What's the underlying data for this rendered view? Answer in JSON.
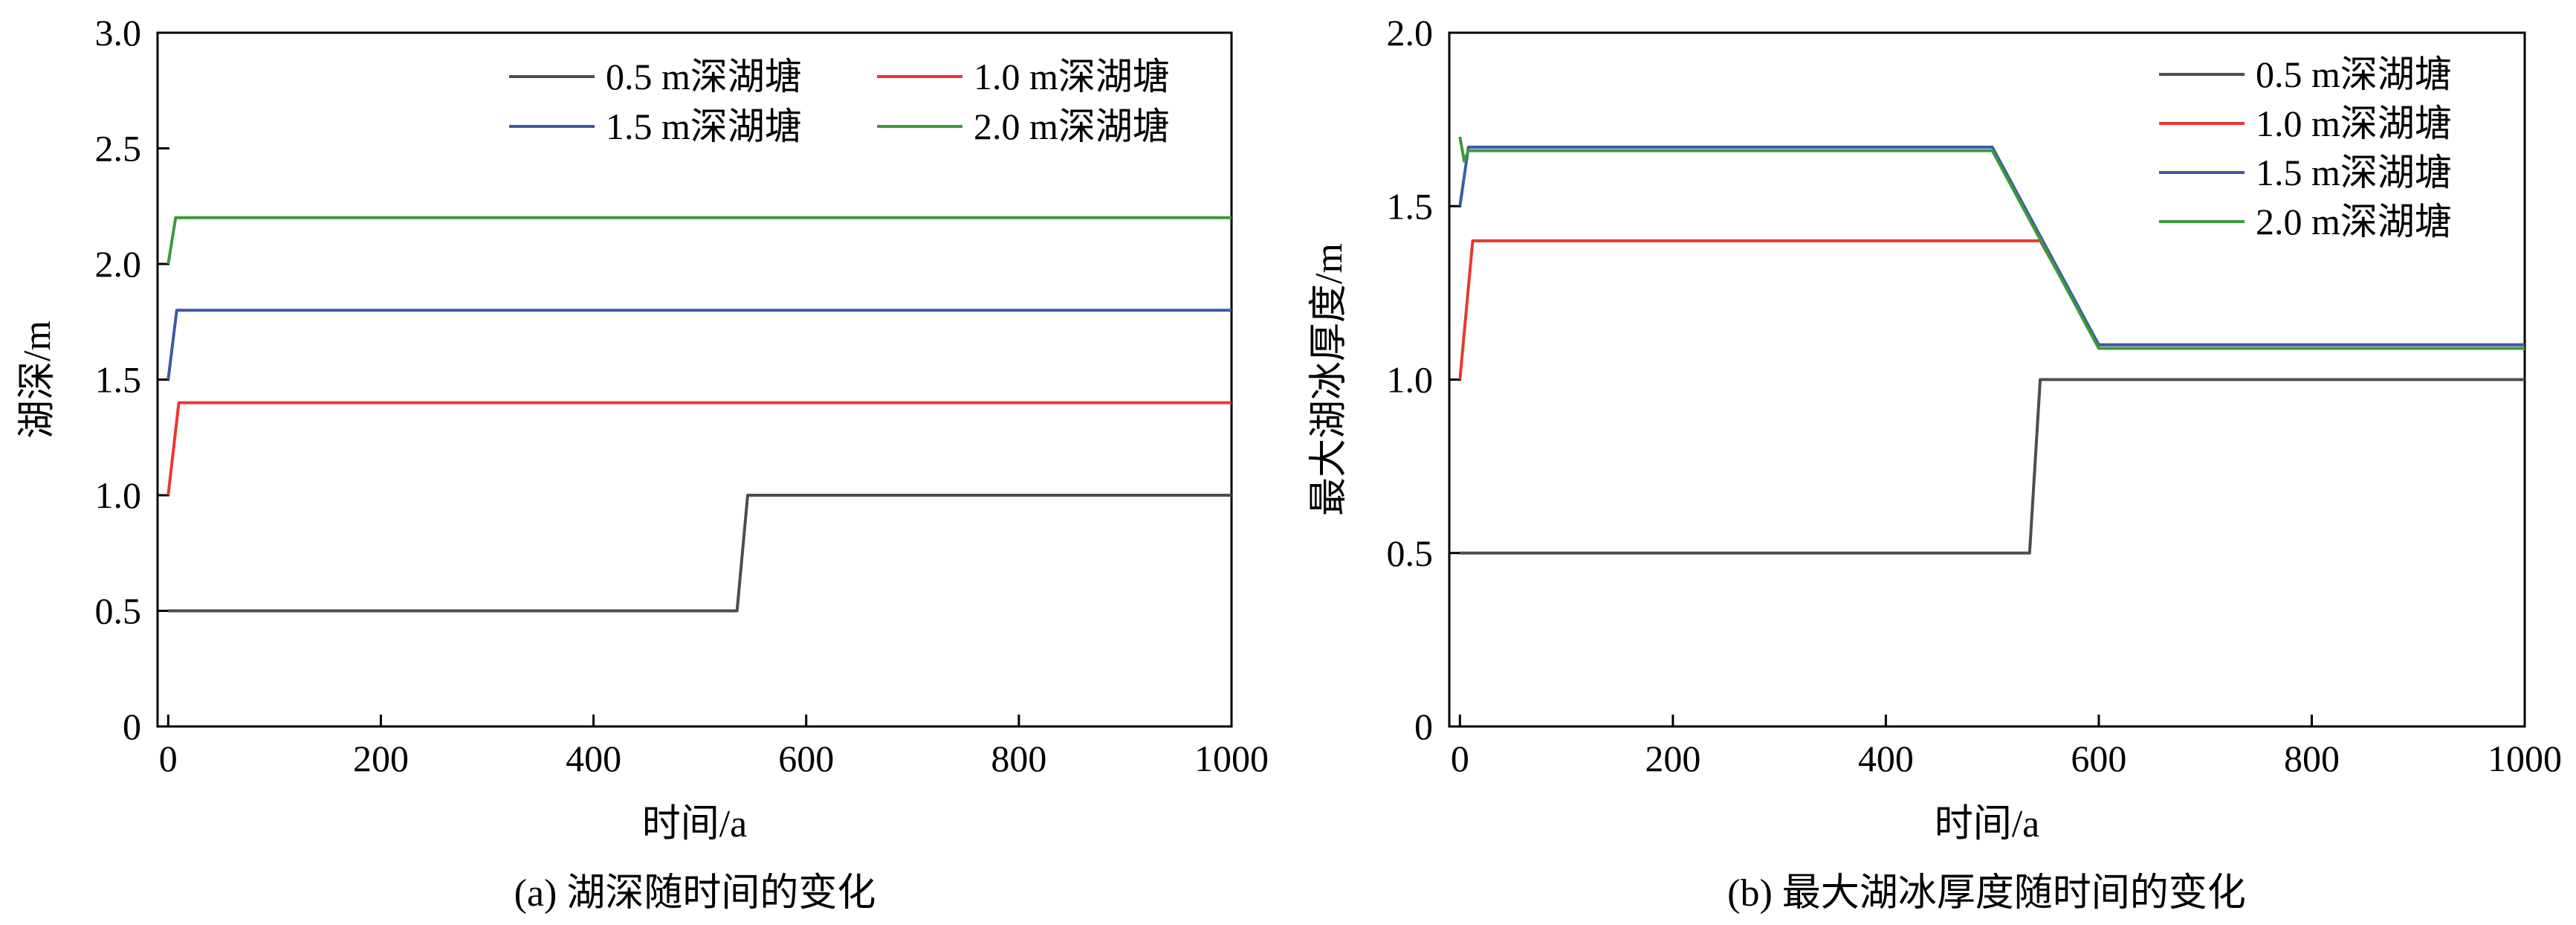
{
  "chart_data": [
    {
      "type": "line",
      "caption": "(a) 湖深随时间的变化",
      "xlabel": "时间/a",
      "ylabel": "湖深/m",
      "xlim": [
        -10,
        1000
      ],
      "ylim": [
        0,
        3.0
      ],
      "xticks": [
        0,
        200,
        400,
        600,
        800,
        1000
      ],
      "xtick_labels": [
        "0",
        "200",
        "400",
        "600",
        "800",
        "1000"
      ],
      "yticks": [
        0,
        0.5,
        1.0,
        1.5,
        2.0,
        2.5,
        3.0
      ],
      "ytick_labels": [
        "0",
        "0.5",
        "1.0",
        "1.5",
        "2.0",
        "2.5",
        "3.0"
      ],
      "grid": false,
      "legend_position": "top-right",
      "legend_columns": 2,
      "series": [
        {
          "name": "0.5 m深湖塘",
          "color": "#4d4d4d",
          "x": [
            0,
            535,
            545,
            1000
          ],
          "y": [
            0.5,
            0.5,
            1.0,
            1.0
          ]
        },
        {
          "name": "1.0 m深湖塘",
          "color": "#e8382f",
          "x": [
            0,
            10,
            1000
          ],
          "y": [
            1.0,
            1.4,
            1.4
          ]
        },
        {
          "name": "1.5 m深湖塘",
          "color": "#3b5aa8",
          "x": [
            0,
            8,
            1000
          ],
          "y": [
            1.5,
            1.8,
            1.8
          ]
        },
        {
          "name": "2.0 m深湖塘",
          "color": "#3a9a3a",
          "x": [
            0,
            7,
            1000
          ],
          "y": [
            2.0,
            2.2,
            2.2
          ]
        }
      ]
    },
    {
      "type": "line",
      "caption": "(b) 最大湖冰厚度随时间的变化",
      "xlabel": "时间/a",
      "ylabel": "最大湖冰厚度/m",
      "xlim": [
        -10,
        1000
      ],
      "ylim": [
        0,
        2.0
      ],
      "xticks": [
        0,
        200,
        400,
        600,
        800,
        1000
      ],
      "xtick_labels": [
        "0",
        "200",
        "400",
        "600",
        "800",
        "1000"
      ],
      "yticks": [
        0,
        0.5,
        1.0,
        1.5,
        2.0
      ],
      "ytick_labels": [
        "0",
        "0.5",
        "1.0",
        "1.5",
        "2.0"
      ],
      "grid": false,
      "legend_position": "top-right",
      "legend_columns": 1,
      "series": [
        {
          "name": "0.5 m深湖塘",
          "color": "#4d4d4d",
          "x": [
            0,
            535,
            545,
            1000
          ],
          "y": [
            0.5,
            0.5,
            1.0,
            1.0
          ]
        },
        {
          "name": "1.0 m深湖塘",
          "color": "#e8382f",
          "x": [
            0,
            12,
            545,
            600,
            1000
          ],
          "y": [
            1.0,
            1.4,
            1.4,
            1.1,
            1.1
          ]
        },
        {
          "name": "1.5 m深湖塘",
          "color": "#3b5aa8",
          "x": [
            0,
            8,
            500,
            600,
            1000
          ],
          "y": [
            1.5,
            1.67,
            1.67,
            1.1,
            1.1
          ]
        },
        {
          "name": "2.0 m深湖塘",
          "color": "#3a9a3a",
          "x": [
            0,
            4,
            8,
            500,
            600,
            1000
          ],
          "y": [
            1.7,
            1.63,
            1.66,
            1.66,
            1.09,
            1.09
          ]
        }
      ]
    }
  ]
}
